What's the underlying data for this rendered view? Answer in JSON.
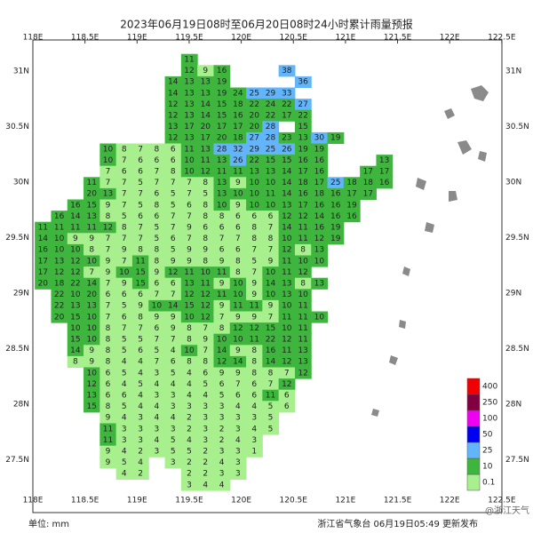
{
  "title": "2023年06月19日08时至06月20日08时24小时累计雨量预报",
  "lon_ticks": [
    "118E",
    "118.5E",
    "119E",
    "119.5E",
    "120E",
    "120.5E",
    "121E",
    "121.5E",
    "122E",
    "122.5E"
  ],
  "lat_ticks": [
    "31N",
    "30.5N",
    "30N",
    "29.5N",
    "29N",
    "28.5N",
    "28N",
    "27.5N"
  ],
  "unit": "单位: mm",
  "issuer": "浙江省气象台 06月19日05:49 更新发布",
  "watermark": "@浙江天气",
  "legend": {
    "levels": [
      0.1,
      10,
      25,
      50,
      100,
      250,
      400
    ],
    "colors": [
      "#a8ef8e",
      "#3eb63e",
      "#62b4fb",
      "#0000f0",
      "#f000f0",
      "#800040",
      "#f00000"
    ]
  },
  "grid": {
    "rows": [
      [
        null,
        null,
        null,
        null,
        null,
        null,
        null,
        null,
        null,
        null,
        11
      ],
      [
        null,
        null,
        null,
        null,
        null,
        null,
        null,
        null,
        null,
        null,
        12,
        9,
        16,
        null,
        null,
        null,
        38
      ],
      [
        null,
        null,
        null,
        null,
        null,
        null,
        null,
        null,
        null,
        14,
        13,
        13,
        19,
        null,
        null,
        null,
        null,
        36
      ],
      [
        null,
        null,
        null,
        null,
        null,
        null,
        null,
        null,
        null,
        14,
        13,
        13,
        19,
        24,
        25,
        29,
        33
      ],
      [
        null,
        null,
        null,
        null,
        null,
        null,
        null,
        null,
        null,
        12,
        13,
        14,
        15,
        18,
        22,
        24,
        22,
        27
      ],
      [
        null,
        null,
        null,
        null,
        null,
        null,
        null,
        null,
        null,
        12,
        13,
        14,
        15,
        16,
        20,
        22,
        17,
        22
      ],
      [
        null,
        null,
        null,
        null,
        null,
        null,
        null,
        null,
        null,
        13,
        17,
        20,
        17,
        17,
        20,
        28,
        null,
        15
      ],
      [
        null,
        null,
        null,
        null,
        null,
        null,
        null,
        null,
        null,
        12,
        13,
        17,
        20,
        18,
        27,
        28,
        23,
        13,
        30,
        19
      ],
      [
        null,
        null,
        null,
        null,
        null,
        10,
        8,
        7,
        8,
        6,
        11,
        13,
        28,
        32,
        29,
        25,
        26,
        19,
        19
      ],
      [
        null,
        null,
        null,
        null,
        null,
        10,
        7,
        6,
        6,
        6,
        10,
        11,
        13,
        26,
        22,
        15,
        15,
        16,
        16,
        null,
        null,
        null,
        13
      ],
      [
        null,
        null,
        null,
        null,
        null,
        7,
        6,
        6,
        7,
        8,
        10,
        12,
        11,
        11,
        13,
        13,
        14,
        17,
        16,
        null,
        null,
        17,
        17
      ],
      [
        null,
        null,
        null,
        null,
        11,
        7,
        7,
        5,
        7,
        7,
        7,
        8,
        13,
        9,
        10,
        10,
        14,
        18,
        17,
        25,
        18,
        18,
        16
      ],
      [
        null,
        null,
        null,
        null,
        20,
        13,
        7,
        7,
        6,
        5,
        7,
        5,
        13,
        10,
        10,
        11,
        14,
        16,
        18,
        16,
        17,
        17
      ],
      [
        null,
        null,
        null,
        16,
        15,
        9,
        7,
        5,
        8,
        5,
        6,
        8,
        10,
        9,
        10,
        10,
        13,
        17,
        16,
        16,
        19
      ],
      [
        null,
        null,
        16,
        14,
        13,
        8,
        5,
        6,
        6,
        7,
        7,
        8,
        8,
        6,
        6,
        6,
        12,
        12,
        14,
        16,
        16
      ],
      [
        null,
        11,
        11,
        11,
        11,
        12,
        8,
        7,
        5,
        7,
        9,
        6,
        6,
        6,
        8,
        7,
        14,
        11,
        16,
        19
      ],
      [
        null,
        14,
        10,
        9,
        9,
        7,
        7,
        7,
        5,
        6,
        7,
        8,
        7,
        7,
        8,
        8,
        10,
        11,
        12,
        19
      ],
      [
        null,
        16,
        10,
        10,
        8,
        7,
        9,
        8,
        8,
        5,
        9,
        9,
        6,
        6,
        7,
        7,
        12,
        8,
        13
      ],
      [
        null,
        17,
        13,
        12,
        10,
        9,
        7,
        11,
        8,
        9,
        9,
        8,
        9,
        8,
        5,
        9,
        11,
        10,
        10
      ],
      [
        null,
        17,
        12,
        12,
        7,
        9,
        10,
        15,
        9,
        12,
        11,
        10,
        11,
        8,
        7,
        10,
        11,
        12
      ],
      [
        null,
        20,
        18,
        22,
        14,
        7,
        9,
        15,
        6,
        6,
        13,
        11,
        9,
        10,
        9,
        14,
        13,
        8,
        13
      ],
      [
        null,
        null,
        22,
        10,
        20,
        6,
        6,
        6,
        7,
        7,
        12,
        12,
        11,
        10,
        9,
        10,
        13,
        10
      ],
      [
        null,
        null,
        22,
        13,
        13,
        7,
        5,
        9,
        10,
        14,
        15,
        12,
        9,
        11,
        11,
        9,
        10,
        11
      ],
      [
        null,
        null,
        20,
        15,
        10,
        7,
        6,
        8,
        9,
        9,
        10,
        12,
        7,
        9,
        9,
        7,
        11,
        11,
        10
      ],
      [
        null,
        null,
        null,
        10,
        10,
        8,
        7,
        7,
        6,
        9,
        8,
        7,
        8,
        12,
        12,
        15,
        10,
        11
      ],
      [
        null,
        null,
        null,
        15,
        10,
        8,
        5,
        5,
        7,
        7,
        8,
        9,
        10,
        10,
        11,
        22,
        12,
        11
      ],
      [
        null,
        null,
        null,
        14,
        9,
        8,
        5,
        6,
        5,
        4,
        10,
        7,
        14,
        9,
        8,
        16,
        11,
        13
      ],
      [
        null,
        null,
        null,
        8,
        9,
        8,
        4,
        4,
        7,
        6,
        8,
        8,
        12,
        14,
        8,
        14,
        12,
        13
      ],
      [
        null,
        null,
        null,
        null,
        10,
        6,
        5,
        4,
        3,
        5,
        4,
        6,
        9,
        9,
        8,
        8,
        7,
        12
      ],
      [
        null,
        null,
        null,
        null,
        12,
        6,
        4,
        5,
        4,
        4,
        4,
        5,
        6,
        7,
        6,
        7,
        12
      ],
      [
        null,
        null,
        null,
        null,
        13,
        6,
        6,
        4,
        3,
        3,
        4,
        4,
        5,
        6,
        6,
        11,
        6
      ],
      [
        null,
        null,
        null,
        null,
        15,
        8,
        5,
        4,
        4,
        3,
        3,
        3,
        3,
        4,
        4,
        5,
        6
      ],
      [
        null,
        null,
        null,
        null,
        null,
        9,
        4,
        3,
        4,
        4,
        2,
        3,
        3,
        3,
        3,
        5
      ],
      [
        null,
        null,
        null,
        null,
        null,
        11,
        3,
        3,
        3,
        3,
        2,
        3,
        2,
        3,
        4,
        5
      ],
      [
        null,
        null,
        null,
        null,
        null,
        11,
        3,
        3,
        4,
        5,
        4,
        3,
        2,
        4,
        3
      ],
      [
        null,
        null,
        null,
        null,
        null,
        9,
        4,
        2,
        3,
        5,
        5,
        2,
        3,
        3,
        1
      ],
      [
        null,
        null,
        null,
        null,
        null,
        9,
        5,
        4,
        null,
        3,
        2,
        2,
        4,
        3
      ],
      [
        null,
        null,
        null,
        null,
        null,
        null,
        4,
        2,
        null,
        null,
        2,
        2,
        3,
        3
      ],
      [
        null,
        null,
        null,
        null,
        null,
        null,
        null,
        null,
        null,
        null,
        3,
        4,
        4
      ]
    ]
  }
}
